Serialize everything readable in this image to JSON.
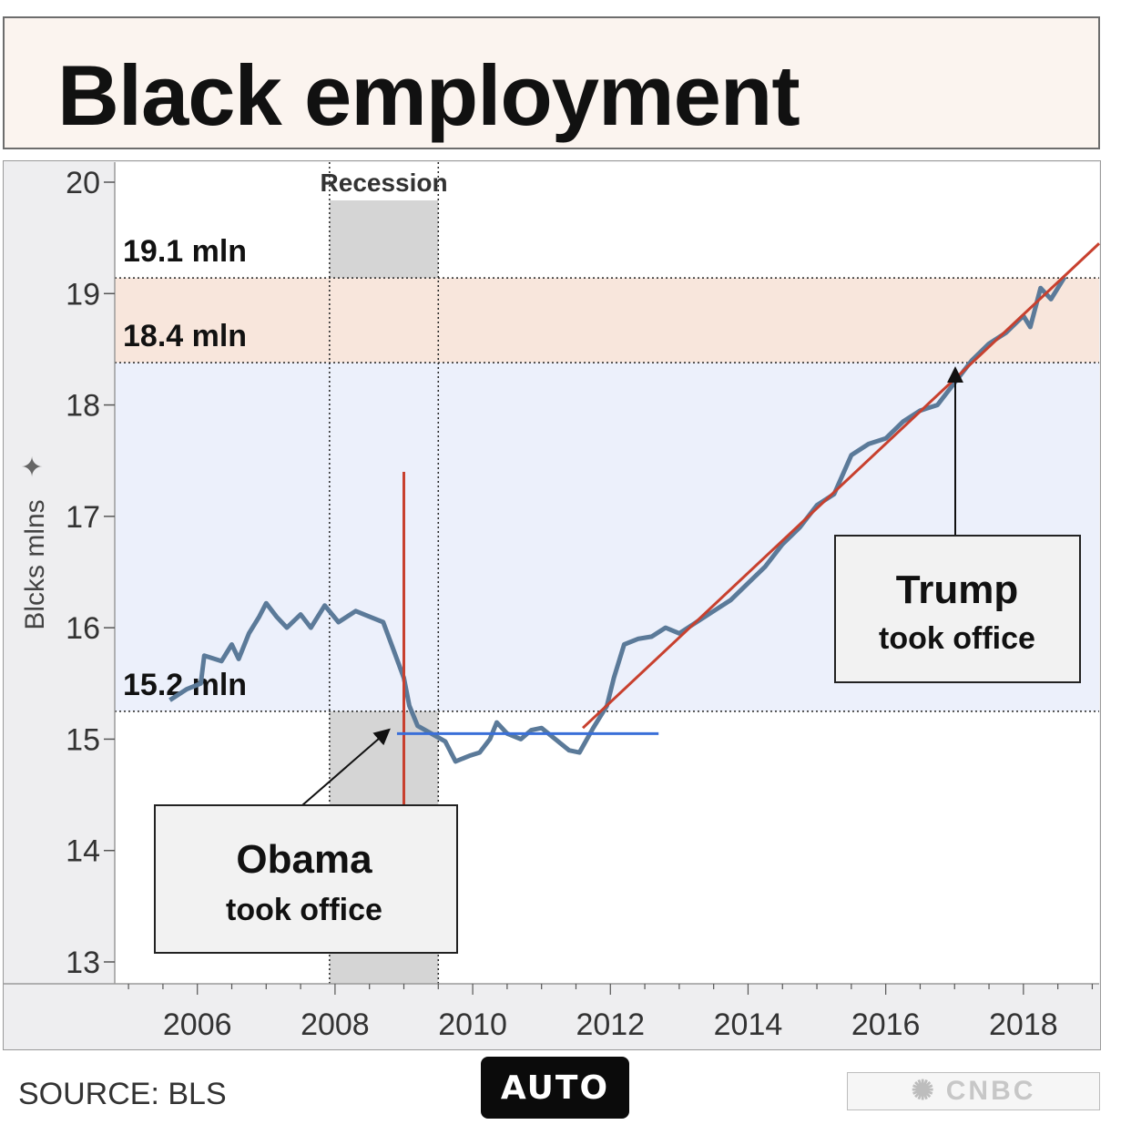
{
  "title": "Black employment",
  "source": "SOURCE: BLS",
  "auto_button": "AUTO",
  "logo": {
    "text": "CNBC",
    "icon": "peacock-icon"
  },
  "colors": {
    "series": "#5b7a99",
    "trend": "#c8402e",
    "obama_flat": "#3a6fd8",
    "highlight_band": "#f8e6dc",
    "mid_band": "#ecf0fb",
    "recession": "#d5d5d5"
  },
  "chart_data": {
    "type": "line",
    "title": "Black employment",
    "ylabel": "Blcks mlns",
    "ylabel_icon": "pin-icon",
    "xlim": [
      2004.8,
      2019.1
    ],
    "ylim": [
      13,
      20
    ],
    "yticks": [
      13,
      14,
      15,
      16,
      17,
      18,
      19,
      20
    ],
    "xticks": [
      2006,
      2008,
      2010,
      2012,
      2014,
      2016,
      2018
    ],
    "grid": false,
    "recession": {
      "label": "Recession",
      "start": 2007.92,
      "end": 2009.5
    },
    "reference_lines": [
      {
        "value": 19.14,
        "label": "19.1 mln"
      },
      {
        "value": 18.38,
        "label": "18.4 mln"
      },
      {
        "value": 15.25,
        "label": "15.2 mln"
      }
    ],
    "series": [
      {
        "values": [
          [
            2005.6,
            15.35
          ],
          [
            2005.85,
            15.45
          ],
          [
            2006.05,
            15.5
          ],
          [
            2006.1,
            15.75
          ],
          [
            2006.35,
            15.7
          ],
          [
            2006.5,
            15.85
          ],
          [
            2006.6,
            15.72
          ],
          [
            2006.75,
            15.95
          ],
          [
            2006.9,
            16.1
          ],
          [
            2007.0,
            16.22
          ],
          [
            2007.15,
            16.1
          ],
          [
            2007.3,
            16.0
          ],
          [
            2007.5,
            16.12
          ],
          [
            2007.65,
            16.0
          ],
          [
            2007.85,
            16.2
          ],
          [
            2008.05,
            16.05
          ],
          [
            2008.3,
            16.15
          ],
          [
            2008.5,
            16.1
          ],
          [
            2008.7,
            16.05
          ],
          [
            2008.85,
            15.8
          ],
          [
            2009.0,
            15.55
          ],
          [
            2009.08,
            15.3
          ],
          [
            2009.2,
            15.12
          ],
          [
            2009.4,
            15.05
          ],
          [
            2009.6,
            14.98
          ],
          [
            2009.75,
            14.8
          ],
          [
            2009.95,
            14.85
          ],
          [
            2010.1,
            14.88
          ],
          [
            2010.25,
            15.0
          ],
          [
            2010.35,
            15.15
          ],
          [
            2010.5,
            15.05
          ],
          [
            2010.7,
            15.0
          ],
          [
            2010.85,
            15.08
          ],
          [
            2011.0,
            15.1
          ],
          [
            2011.2,
            15.0
          ],
          [
            2011.4,
            14.9
          ],
          [
            2011.55,
            14.88
          ],
          [
            2011.75,
            15.1
          ],
          [
            2011.95,
            15.3
          ],
          [
            2012.05,
            15.55
          ],
          [
            2012.2,
            15.85
          ],
          [
            2012.4,
            15.9
          ],
          [
            2012.6,
            15.92
          ],
          [
            2012.8,
            16.0
          ],
          [
            2013.0,
            15.95
          ],
          [
            2013.25,
            16.05
          ],
          [
            2013.5,
            16.15
          ],
          [
            2013.75,
            16.25
          ],
          [
            2014.0,
            16.4
          ],
          [
            2014.25,
            16.55
          ],
          [
            2014.5,
            16.75
          ],
          [
            2014.75,
            16.9
          ],
          [
            2015.0,
            17.1
          ],
          [
            2015.25,
            17.2
          ],
          [
            2015.5,
            17.55
          ],
          [
            2015.75,
            17.65
          ],
          [
            2016.0,
            17.7
          ],
          [
            2016.25,
            17.85
          ],
          [
            2016.5,
            17.95
          ],
          [
            2016.75,
            18.0
          ],
          [
            2017.0,
            18.2
          ],
          [
            2017.25,
            18.4
          ],
          [
            2017.5,
            18.55
          ],
          [
            2017.75,
            18.65
          ],
          [
            2018.0,
            18.8
          ],
          [
            2018.1,
            18.7
          ],
          [
            2018.25,
            19.05
          ],
          [
            2018.4,
            18.95
          ],
          [
            2018.6,
            19.15
          ]
        ]
      }
    ],
    "annotations": [
      {
        "text": [
          "Obama",
          "took office"
        ],
        "x": 2009.08,
        "y": 15.25
      },
      {
        "text": [
          "Trump",
          "took office"
        ],
        "x": 2017.05,
        "y": 18.3
      }
    ],
    "trend_lines": [
      {
        "kind": "vertical",
        "x": 2009.0,
        "y": [
          13.7,
          17.4
        ]
      },
      {
        "kind": "horizontal",
        "y": 15.05,
        "x": [
          2008.9,
          2012.7
        ]
      },
      {
        "kind": "diagonal",
        "from": [
          2011.6,
          15.1
        ],
        "to": [
          2019.1,
          19.45
        ]
      }
    ]
  }
}
